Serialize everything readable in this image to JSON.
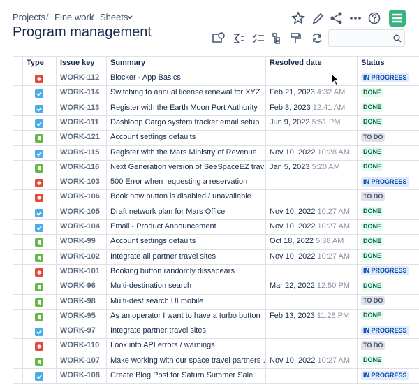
{
  "breadcrumbs": [
    "Projects",
    "Fine work",
    "Sheets"
  ],
  "title": "Program management",
  "table": {
    "columns": [
      "Type",
      "Issue key",
      "Summary",
      "Resolved date",
      "Status"
    ],
    "rows": [
      {
        "key": "WORK-112",
        "summary": "Blocker - App Basics",
        "status": "IN PROGRESS"
      },
      {
        "key": "WORK-114",
        "summary": "Switching to annual license renewal for XYZ …",
        "date": "Feb 21, 2023",
        "time": "4:32 AM",
        "status": "DONE"
      },
      {
        "key": "WORK-113",
        "summary": "Register with the Earth Moon Port Authority",
        "date": "Feb 3, 2023",
        "time": "12:41 AM",
        "status": "DONE"
      },
      {
        "key": "WORK-111",
        "summary": "Dashloop Cargo system tracker email setup",
        "date": "Jun 9, 2022",
        "time": "5:51 PM",
        "status": "DONE"
      },
      {
        "key": "WORK-121",
        "summary": "Account settings defaults",
        "status": "TO DO"
      },
      {
        "key": "WORK-115",
        "summary": "Register with the Mars Ministry of Revenue",
        "date": "Nov 10, 2022",
        "time": "10:28 AM",
        "status": "DONE"
      },
      {
        "key": "WORK-116",
        "summary": "Next Generation version of SeeSpaceEZ trav…",
        "date": "Jan 5, 2023",
        "time": "5:20 AM",
        "status": "DONE"
      },
      {
        "key": "WORK-103",
        "summary": "500 Error when requesting a reservation",
        "status": "IN PROGRESS"
      },
      {
        "key": "WORK-106",
        "summary": "Book now button is disabled / unavailable",
        "status": "TO DO"
      },
      {
        "key": "WORK-105",
        "summary": "Draft network plan for Mars Office",
        "date": "Nov 10, 2022",
        "time": "10:27 AM",
        "status": "DONE"
      },
      {
        "key": "WORK-104",
        "summary": "Email - Product Announcement",
        "date": "Nov 10, 2022",
        "time": "10:27 AM",
        "status": "DONE"
      },
      {
        "key": "WORK-99",
        "summary": "Account settings defaults",
        "date": "Oct 18, 2022",
        "time": "5:38 AM",
        "status": "DONE"
      },
      {
        "key": "WORK-102",
        "summary": "Integrate all partner travel sites",
        "date": "Nov 10, 2022",
        "time": "10:27 AM",
        "status": "DONE"
      },
      {
        "key": "WORK-101",
        "summary": "Booking button randomly dissapears",
        "status": "IN PROGRESS"
      },
      {
        "key": "WORK-96",
        "summary": "Multi-destination search",
        "date": "Mar 22, 2022",
        "time": "12:50 PM",
        "status": "DONE"
      },
      {
        "key": "WORK-98",
        "summary": "Multi-dest search UI mobile",
        "status": "TO DO"
      },
      {
        "key": "WORK-95",
        "summary": "As an operator I want to have a turbo button",
        "date": "Feb 13, 2023",
        "time": "11:28 PM",
        "status": "DONE"
      },
      {
        "key": "WORK-97",
        "summary": "Integrate partner travel sites",
        "status": "IN PROGRESS"
      },
      {
        "key": "WORK-110",
        "summary": "Look into API errors / warnings",
        "status": "TO DO"
      },
      {
        "key": "WORK-107",
        "summary": "Make working with our space travel partners …",
        "date": "Nov 10, 2022",
        "time": "10:27 AM",
        "status": "DONE"
      },
      {
        "key": "WORK-108",
        "summary": "Create Blog Post for Saturn Summer Sale",
        "status": "IN PROGRESS"
      }
    ]
  }
}
